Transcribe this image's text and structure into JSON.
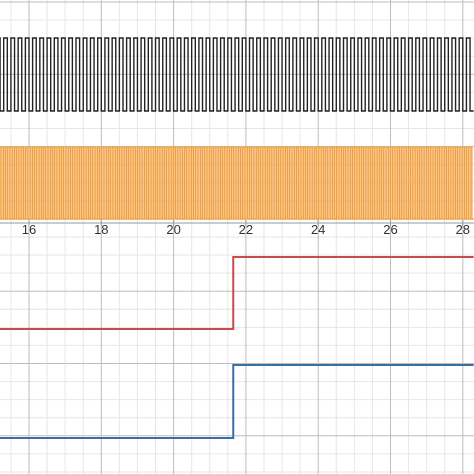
{
  "chart_data": {
    "type": "line",
    "title": "",
    "xlabel": "",
    "ylabel": "",
    "x_axis": {
      "ticks": [
        16,
        18,
        20,
        22,
        24,
        26,
        28
      ],
      "tick_labels": [
        "16",
        "18",
        "20",
        "22",
        "24",
        "26",
        "28"
      ],
      "visible_range": [
        14.7,
        28.3
      ]
    },
    "grid": true,
    "series": [
      {
        "color": "#222222",
        "kind": "square-wave",
        "x_start": 14.7,
        "x_end": 28.3,
        "period": 0.2,
        "levels": [
          "high",
          "low"
        ]
      },
      {
        "color": "#f0a040",
        "kind": "square-wave",
        "x_start": 14.7,
        "x_end": 28.3,
        "period": 0.1,
        "levels": [
          "high",
          "low"
        ]
      },
      {
        "color": "#c84a4a",
        "kind": "step",
        "x": [
          14.7,
          21.65,
          21.65,
          28.3
        ],
        "state": [
          "low",
          "low",
          "high",
          "high"
        ]
      },
      {
        "color": "#3a6ea5",
        "kind": "step",
        "x": [
          14.7,
          21.65,
          21.65,
          28.3
        ],
        "state": [
          "low",
          "low",
          "high",
          "high"
        ]
      }
    ]
  }
}
